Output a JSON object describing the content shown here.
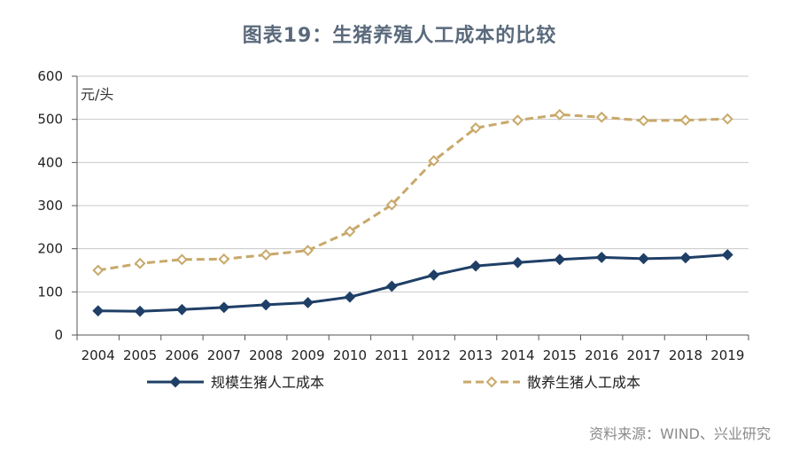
{
  "chart_data": {
    "type": "line",
    "title": "图表19：生猪养殖人工成本的比较",
    "unit_label": "元/头",
    "xlabel": "",
    "ylabel": "元/头",
    "ylim": [
      0,
      600
    ],
    "yticks": [
      0,
      100,
      200,
      300,
      400,
      500,
      600
    ],
    "categories": [
      "2004",
      "2005",
      "2006",
      "2007",
      "2008",
      "2009",
      "2010",
      "2011",
      "2012",
      "2013",
      "2014",
      "2015",
      "2016",
      "2017",
      "2018",
      "2019"
    ],
    "grid": true,
    "legend_position": "bottom",
    "series": [
      {
        "name": "规模生猪人工成本",
        "color": "#1f3f66",
        "style": "solid",
        "values": [
          56,
          55,
          59,
          64,
          70,
          75,
          88,
          113,
          139,
          160,
          168,
          175,
          180,
          177,
          179,
          186
        ]
      },
      {
        "name": "散养生猪人工成本",
        "color": "#c8a96a",
        "style": "dashed",
        "values": [
          150,
          166,
          175,
          176,
          186,
          196,
          240,
          302,
          404,
          480,
          498,
          511,
          505,
          497,
          498,
          501
        ]
      }
    ]
  },
  "source": "资料来源：WIND、兴业研究"
}
